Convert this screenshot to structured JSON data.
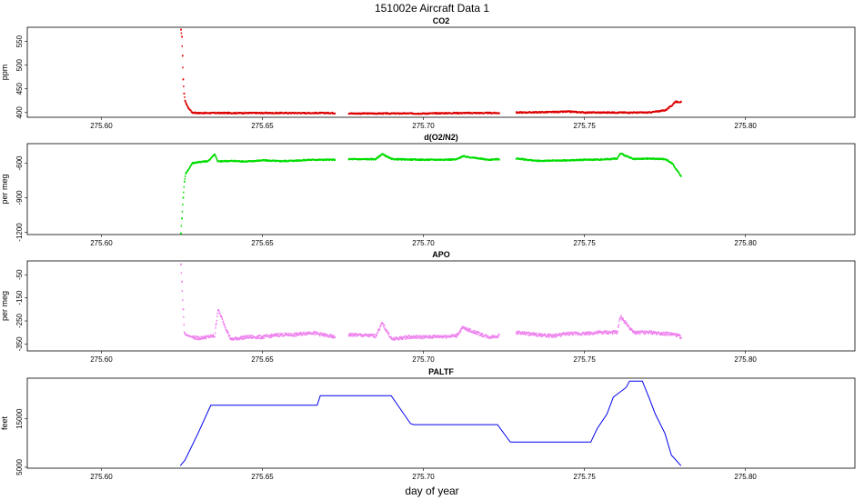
{
  "figure": {
    "title": "151002e   Aircraft Data 1",
    "xlabel": "day of year"
  },
  "chart_data": [
    {
      "type": "scatter",
      "title": "CO2",
      "ylabel": "ppm",
      "color": "#dd0000",
      "xlim": [
        275.577,
        275.834
      ],
      "ylim": [
        390,
        580
      ],
      "xticks": [
        275.6,
        275.65,
        275.7,
        275.75,
        275.8
      ],
      "xtick_labels": [
        "275.60",
        "275.65",
        "275.70",
        "275.75",
        "275.80"
      ],
      "yticks": [
        400,
        450,
        500,
        550
      ],
      "ytick_labels": [
        "400",
        "450",
        "500",
        "550"
      ],
      "series": [
        {
          "x": [
            275.6245,
            275.6248,
            275.625,
            275.6252,
            275.6255,
            275.6258,
            275.6262,
            275.6268,
            275.6275,
            275.628,
            275.63,
            275.64,
            275.65,
            275.66,
            275.672,
            275.677,
            275.69,
            275.7,
            275.71,
            275.723,
            275.729,
            275.74,
            275.745,
            275.75,
            275.76,
            275.77,
            275.775,
            275.777,
            275.778,
            275.78
          ],
          "y": [
            575,
            560,
            520,
            470,
            440,
            425,
            418,
            410,
            404,
            400,
            399,
            399,
            399,
            399,
            399,
            398,
            398,
            398,
            399,
            399,
            400,
            401,
            402,
            400,
            400,
            400,
            405,
            415,
            423,
            422
          ]
        }
      ]
    },
    {
      "type": "scatter",
      "title": "d(O2/N2)",
      "ylabel": "per meg",
      "color": "#00dd00",
      "xlim": [
        275.577,
        275.834
      ],
      "ylim": [
        -1220,
        -430
      ],
      "xticks": [
        275.6,
        275.65,
        275.7,
        275.75,
        275.8
      ],
      "xtick_labels": [
        "275.60",
        "275.65",
        "275.70",
        "275.75",
        "275.80"
      ],
      "yticks": [
        -600,
        -900,
        -1200
      ],
      "ytick_labels": [
        "-600",
        "-900",
        "-1200"
      ],
      "series": [
        {
          "x": [
            275.6245,
            275.6248,
            275.6252,
            275.6256,
            275.626,
            275.627,
            275.628,
            275.63,
            275.633,
            275.635,
            275.636,
            275.64,
            275.645,
            275.65,
            275.655,
            275.66,
            275.665,
            275.672,
            275.677,
            275.685,
            275.687,
            275.69,
            275.7,
            275.71,
            275.712,
            275.72,
            275.723,
            275.729,
            275.735,
            275.74,
            275.745,
            275.75,
            275.755,
            275.76,
            275.761,
            275.765,
            275.77,
            275.775,
            275.777,
            275.78
          ],
          "y": [
            -1210,
            -1080,
            -900,
            -760,
            -690,
            -650,
            -600,
            -590,
            -582,
            -520,
            -585,
            -580,
            -585,
            -575,
            -582,
            -578,
            -570,
            -570,
            -565,
            -565,
            -520,
            -565,
            -570,
            -568,
            -540,
            -570,
            -565,
            -560,
            -580,
            -578,
            -575,
            -570,
            -568,
            -560,
            -515,
            -565,
            -560,
            -565,
            -600,
            -720
          ]
        }
      ]
    },
    {
      "type": "scatter",
      "title": "APO",
      "ylabel": "per meg",
      "color": "#ee82ee",
      "xlim": [
        275.577,
        275.834
      ],
      "ylim": [
        -380,
        10
      ],
      "xticks": [
        275.6,
        275.65,
        275.7,
        275.75,
        275.8
      ],
      "xtick_labels": [
        "275.60",
        "275.65",
        "275.70",
        "275.75",
        "275.80"
      ],
      "yticks": [
        -50,
        -150,
        -250,
        -350
      ],
      "ytick_labels": [
        "-50",
        "-150",
        "-250",
        "-350"
      ],
      "series": [
        {
          "x": [
            275.6245,
            275.6248,
            275.6252,
            275.6256,
            275.626,
            275.628,
            275.63,
            275.635,
            275.636,
            275.64,
            275.645,
            275.65,
            275.655,
            275.66,
            275.665,
            275.672,
            275.677,
            275.685,
            275.687,
            275.69,
            275.695,
            275.7,
            275.71,
            275.712,
            275.72,
            275.723,
            275.729,
            275.735,
            275.74,
            275.745,
            275.75,
            275.755,
            275.76,
            275.761,
            275.765,
            275.77,
            275.775,
            275.778,
            275.78
          ],
          "y": [
            -5,
            -80,
            -200,
            -300,
            -310,
            -320,
            -325,
            -315,
            -200,
            -330,
            -320,
            -320,
            -310,
            -310,
            -300,
            -320,
            -310,
            -315,
            -260,
            -330,
            -320,
            -320,
            -315,
            -280,
            -320,
            -315,
            -300,
            -310,
            -315,
            -305,
            -305,
            -300,
            -300,
            -230,
            -300,
            -300,
            -305,
            -310,
            -320
          ]
        }
      ]
    },
    {
      "type": "line",
      "title": "PALTF",
      "ylabel": "feet",
      "color": "#0000ee",
      "xlim": [
        275.577,
        275.834
      ],
      "ylim": [
        4800,
        23400
      ],
      "xticks": [
        275.6,
        275.65,
        275.7,
        275.75,
        275.8
      ],
      "xtick_labels": [
        "275.60",
        "275.65",
        "275.70",
        "275.75",
        "275.80"
      ],
      "yticks": [
        5000,
        15000
      ],
      "ytick_labels": [
        "5000",
        "15000"
      ],
      "series": [
        {
          "x": [
            275.6245,
            275.626,
            275.63,
            275.634,
            275.667,
            275.668,
            275.69,
            275.696,
            275.697,
            275.723,
            275.727,
            275.752,
            275.754,
            275.757,
            275.759,
            275.76,
            275.763,
            275.764,
            275.768,
            275.77,
            275.772,
            275.775,
            275.777,
            275.78
          ],
          "y": [
            5300,
            6500,
            12000,
            17800,
            17800,
            19800,
            19800,
            14000,
            13800,
            13800,
            10200,
            10200,
            13000,
            16000,
            19500,
            20000,
            21500,
            22800,
            22800,
            19500,
            16000,
            12000,
            7500,
            5300
          ]
        }
      ]
    }
  ]
}
